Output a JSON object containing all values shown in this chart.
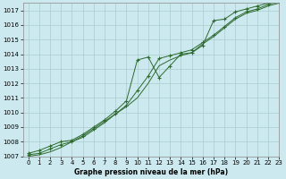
{
  "xlabel": "Graphe pression niveau de la mer (hPa)",
  "xlim": [
    -0.5,
    23
  ],
  "ylim": [
    1007,
    1017.5
  ],
  "yticks": [
    1007,
    1008,
    1009,
    1010,
    1011,
    1012,
    1013,
    1014,
    1015,
    1016,
    1017
  ],
  "xticks": [
    0,
    1,
    2,
    3,
    4,
    5,
    6,
    7,
    8,
    9,
    10,
    11,
    12,
    13,
    14,
    15,
    16,
    17,
    18,
    19,
    20,
    21,
    22,
    23
  ],
  "background_color": "#cce9f0",
  "grid_color": "#aacccc",
  "line_color": "#2d6a2d",
  "line1_x": [
    0,
    1,
    2,
    3,
    4,
    5,
    6,
    7,
    8,
    9,
    10,
    11,
    12,
    13,
    14,
    15,
    16,
    17,
    18,
    19,
    20,
    21,
    22,
    23
  ],
  "line1_y": [
    1007.1,
    1007.2,
    1007.5,
    1007.8,
    1008.0,
    1008.4,
    1008.9,
    1009.4,
    1009.9,
    1010.5,
    1011.5,
    1012.5,
    1013.7,
    1013.9,
    1014.1,
    1014.3,
    1014.8,
    1015.3,
    1015.9,
    1016.5,
    1016.9,
    1017.1,
    1017.4,
    1017.6
  ],
  "line2_x": [
    0,
    1,
    2,
    3,
    4,
    5,
    6,
    7,
    8,
    9,
    10,
    11,
    12,
    13,
    14,
    15,
    16,
    17,
    18,
    19,
    20,
    21,
    22,
    23
  ],
  "line2_y": [
    1007.2,
    1007.4,
    1007.7,
    1008.0,
    1008.1,
    1008.5,
    1009.0,
    1009.5,
    1010.1,
    1010.8,
    1013.6,
    1013.8,
    1012.4,
    1013.2,
    1014.0,
    1014.1,
    1014.6,
    1016.3,
    1016.4,
    1016.9,
    1017.1,
    1017.3,
    1017.5,
    1017.7
  ],
  "line3_x": [
    0,
    1,
    2,
    3,
    4,
    5,
    6,
    7,
    8,
    9,
    10,
    11,
    12,
    13,
    14,
    15,
    16,
    17,
    18,
    19,
    20,
    21,
    22,
    23
  ],
  "line3_y": [
    1007.0,
    1007.1,
    1007.3,
    1007.6,
    1008.0,
    1008.3,
    1008.8,
    1009.3,
    1009.9,
    1010.4,
    1011.0,
    1012.0,
    1013.2,
    1013.6,
    1013.9,
    1014.1,
    1014.7,
    1015.2,
    1015.8,
    1016.4,
    1016.8,
    1017.0,
    1017.3,
    1017.5
  ]
}
